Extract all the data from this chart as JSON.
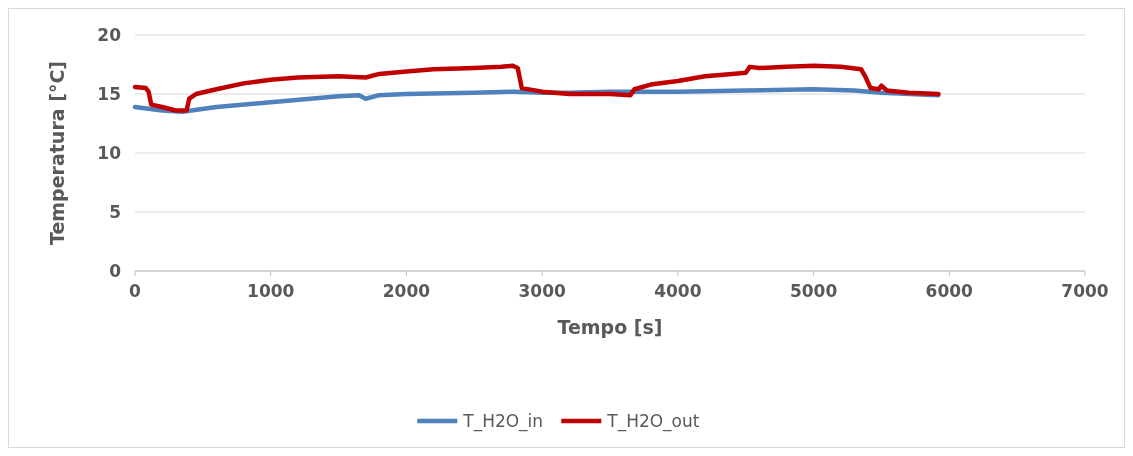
{
  "chart_data": {
    "type": "line",
    "xlabel": "Tempo [s]",
    "ylabel": "Temperatura [°C]",
    "xlim": [
      0,
      7000
    ],
    "xticks": [
      0,
      1000,
      2000,
      3000,
      4000,
      5000,
      6000,
      7000
    ],
    "ylim": [
      0,
      20
    ],
    "yticks": [
      0,
      5,
      10,
      15,
      20
    ],
    "grid": "y",
    "legend": "bottom",
    "marker": "none",
    "line_style": "solid",
    "series": [
      {
        "name": "T_H2O_in",
        "color": "#4f81bd",
        "x": [
          0,
          200,
          350,
          600,
          1000,
          1500,
          1650,
          1700,
          1800,
          2000,
          2500,
          2800,
          3000,
          3200,
          3500,
          4000,
          4500,
          5000,
          5300,
          5500,
          5920
        ],
        "values": [
          13.9,
          13.6,
          13.5,
          13.9,
          14.3,
          14.8,
          14.9,
          14.6,
          14.9,
          15.0,
          15.1,
          15.2,
          15.1,
          15.1,
          15.2,
          15.2,
          15.3,
          15.4,
          15.3,
          15.1,
          14.9
        ]
      },
      {
        "name": "T_H2O_out",
        "color": "#c00000",
        "x": [
          0,
          80,
          100,
          120,
          200,
          300,
          380,
          400,
          450,
          600,
          800,
          1000,
          1200,
          1500,
          1700,
          1800,
          2000,
          2200,
          2500,
          2700,
          2780,
          2820,
          2850,
          3000,
          3200,
          3500,
          3650,
          3680,
          3800,
          4000,
          4200,
          4400,
          4500,
          4530,
          4600,
          4800,
          5000,
          5200,
          5350,
          5380,
          5420,
          5480,
          5500,
          5540,
          5700,
          5920
        ],
        "values": [
          15.6,
          15.5,
          15.2,
          14.1,
          13.9,
          13.6,
          13.6,
          14.6,
          15.0,
          15.4,
          15.9,
          16.2,
          16.4,
          16.5,
          16.4,
          16.7,
          16.9,
          17.1,
          17.2,
          17.3,
          17.4,
          17.2,
          15.5,
          15.2,
          15.0,
          15.0,
          14.9,
          15.4,
          15.8,
          16.1,
          16.5,
          16.7,
          16.8,
          17.3,
          17.2,
          17.3,
          17.4,
          17.3,
          17.1,
          16.5,
          15.5,
          15.4,
          15.7,
          15.3,
          15.1,
          15.0
        ]
      }
    ]
  }
}
